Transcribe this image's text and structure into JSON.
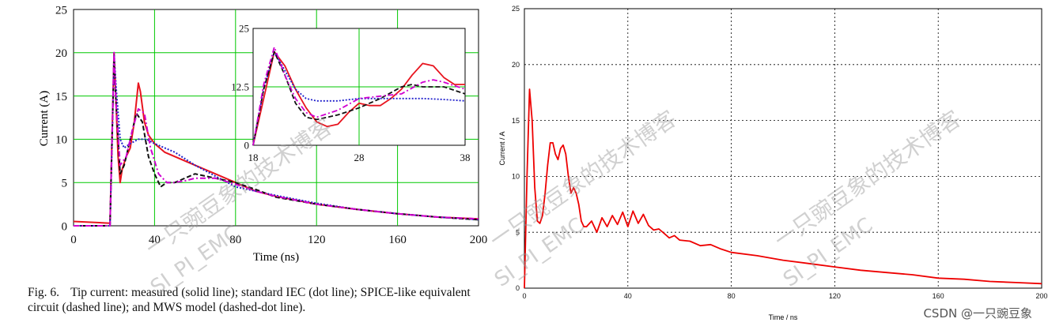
{
  "left": {
    "caption": {
      "fig_label": "Fig. 6.",
      "text": "Tip current: measured (solid line); standard IEC (dot line); SPICE-like equivalent circuit (dashed line); and MWS model (dashed-dot line)."
    }
  },
  "right": {
    "credit": "CSDN @一只豌豆象"
  },
  "watermarks": {
    "cn": "一只豌豆象的技术博客",
    "en": "SI_PI_EMC"
  },
  "colors": {
    "grid_green": "#00c800",
    "measured": "#e8141e",
    "spice": "#111111",
    "iec": "#2222cc",
    "mws": "#d000d0",
    "right_line": "#ee0000"
  },
  "chart_data": [
    {
      "type": "line",
      "title": "",
      "xlabel": "Time (ns)",
      "ylabel": "Current (A)",
      "xlim": [
        0,
        200
      ],
      "ylim": [
        0,
        25
      ],
      "xticks": [
        "0",
        "40",
        "80",
        "120",
        "160",
        "200"
      ],
      "yticks": [
        "0",
        "5",
        "10",
        "15",
        "20",
        "25"
      ],
      "grid": true,
      "series": [
        {
          "style": "solid",
          "color_key": "measured",
          "x": [
            0,
            18,
            19,
            20,
            21,
            22,
            23,
            24,
            26,
            28,
            30,
            32,
            33,
            35,
            37,
            40,
            45,
            50,
            60,
            70,
            80,
            90,
            100,
            120,
            140,
            160,
            180,
            200
          ],
          "y": [
            0.5,
            0.3,
            10,
            20,
            14,
            8,
            5,
            6.5,
            8,
            9,
            12,
            16.5,
            15.5,
            12,
            10.5,
            9.5,
            8.5,
            8,
            7,
            6,
            5,
            4,
            3.4,
            2.5,
            1.9,
            1.4,
            1.0,
            0.8
          ]
        },
        {
          "style": "dot",
          "color_key": "iec",
          "x": [
            0,
            18,
            19,
            20,
            21,
            23,
            25,
            28,
            32,
            36,
            40,
            50,
            60,
            80,
            100,
            120,
            140,
            160,
            180,
            200
          ],
          "y": [
            0,
            0,
            9,
            20,
            16,
            10,
            9,
            9.5,
            10,
            10,
            9.5,
            8.5,
            7,
            4.5,
            3.5,
            2.6,
            1.9,
            1.4,
            1.0,
            0.7
          ]
        },
        {
          "style": "dash",
          "color_key": "spice",
          "x": [
            0,
            18,
            19,
            20,
            21,
            23,
            25,
            28,
            31,
            34,
            37,
            40,
            43,
            46,
            50,
            55,
            60,
            70,
            80,
            90,
            100,
            120,
            140,
            160,
            180,
            200
          ],
          "y": [
            0,
            0,
            10,
            19,
            14,
            6,
            7,
            10,
            13,
            12,
            8,
            6,
            4.5,
            5,
            5,
            5.5,
            6,
            5.5,
            5,
            4.2,
            3.3,
            2.5,
            1.9,
            1.4,
            1.0,
            0.7
          ]
        },
        {
          "style": "dashdot",
          "color_key": "mws",
          "x": [
            0,
            18,
            19,
            20,
            21,
            23,
            26,
            29,
            32,
            35,
            38,
            42,
            46,
            50,
            55,
            60,
            70,
            80,
            90,
            100,
            120,
            140,
            160,
            180,
            200
          ],
          "y": [
            0,
            0,
            10,
            20,
            14,
            7,
            8,
            11,
            13.5,
            13,
            9,
            6,
            5,
            5,
            5.2,
            5.5,
            5.5,
            4.8,
            4.0,
            3.4,
            2.5,
            1.9,
            1.4,
            1.0,
            0.8
          ]
        }
      ]
    },
    {
      "type": "line",
      "title": "",
      "xlabel": "",
      "ylabel": "",
      "xlim": [
        18,
        38
      ],
      "ylim": [
        0,
        25
      ],
      "xticks": [
        "18",
        "28",
        "38"
      ],
      "yticks": [
        "0",
        "12.5",
        "25"
      ],
      "grid": true,
      "series": [
        {
          "style": "solid",
          "color_key": "measured",
          "x": [
            18,
            19,
            20,
            21,
            22,
            23,
            24,
            25,
            26,
            27,
            28,
            29,
            30,
            31,
            32,
            33,
            34,
            35,
            36,
            37,
            38
          ],
          "y": [
            0,
            10,
            20,
            17,
            12,
            8,
            5,
            4,
            4.5,
            7,
            9,
            8.5,
            8.5,
            10,
            12,
            15,
            17.5,
            17,
            14.5,
            13,
            13
          ]
        },
        {
          "style": "dot",
          "color_key": "iec",
          "x": [
            18,
            19,
            20,
            21,
            22,
            23,
            24,
            26,
            28,
            30,
            32,
            34,
            36,
            38
          ],
          "y": [
            0,
            12,
            20,
            16,
            12,
            10,
            9.5,
            9.5,
            10,
            10,
            10,
            10,
            9.8,
            9.5
          ]
        },
        {
          "style": "dash",
          "color_key": "spice",
          "x": [
            18,
            19,
            20,
            21,
            22,
            23,
            24,
            25,
            26,
            28,
            30,
            32,
            33,
            34,
            36,
            38
          ],
          "y": [
            0,
            12,
            20,
            15,
            9,
            6,
            5.5,
            6,
            6.5,
            8,
            10,
            12.5,
            13,
            12.5,
            12.5,
            11
          ]
        },
        {
          "style": "dashdot",
          "color_key": "mws",
          "x": [
            18,
            19,
            20,
            21,
            22,
            23,
            24,
            26,
            28,
            30,
            32,
            34,
            35,
            36,
            38
          ],
          "y": [
            0,
            13,
            21,
            15,
            10,
            7,
            6,
            7.5,
            10,
            10.5,
            11,
            13.5,
            14,
            13.5,
            12
          ]
        }
      ]
    },
    {
      "type": "line",
      "title": "",
      "xlabel": "Time / ns",
      "ylabel": "Current / A",
      "xlim": [
        0,
        200
      ],
      "ylim": [
        0,
        25
      ],
      "xticks": [
        "0",
        "40",
        "80",
        "120",
        "160",
        "200"
      ],
      "yticks": [
        "0",
        "5",
        "10",
        "15",
        "20",
        "25"
      ],
      "grid": true,
      "series": [
        {
          "style": "solid",
          "color_key": "right_line",
          "x": [
            0,
            1,
            2,
            3,
            4,
            5,
            6,
            7,
            8,
            9,
            10,
            11,
            12,
            13,
            14,
            15,
            16,
            17,
            18,
            19,
            20,
            21,
            22,
            23,
            24,
            26,
            28,
            30,
            32,
            34,
            36,
            38,
            40,
            42,
            44,
            46,
            48,
            50,
            52,
            54,
            56,
            58,
            60,
            64,
            68,
            72,
            76,
            80,
            90,
            100,
            110,
            120,
            130,
            140,
            150,
            160,
            170,
            180,
            190,
            200
          ],
          "y": [
            0,
            10,
            17.8,
            15,
            9,
            6,
            5.8,
            6.5,
            8.5,
            11,
            13,
            13,
            12,
            11.5,
            12.5,
            12.8,
            12,
            10,
            8.5,
            9,
            8.5,
            7.5,
            6,
            5.5,
            5.5,
            6,
            5,
            6.3,
            5.5,
            6.5,
            5.7,
            6.8,
            5.5,
            6.9,
            5.8,
            6.6,
            5.6,
            5.2,
            5.3,
            4.9,
            4.5,
            4.7,
            4.3,
            4.2,
            3.8,
            3.9,
            3.5,
            3.2,
            2.9,
            2.5,
            2.2,
            1.9,
            1.6,
            1.4,
            1.2,
            0.9,
            0.8,
            0.6,
            0.5,
            0.4
          ]
        }
      ]
    }
  ]
}
